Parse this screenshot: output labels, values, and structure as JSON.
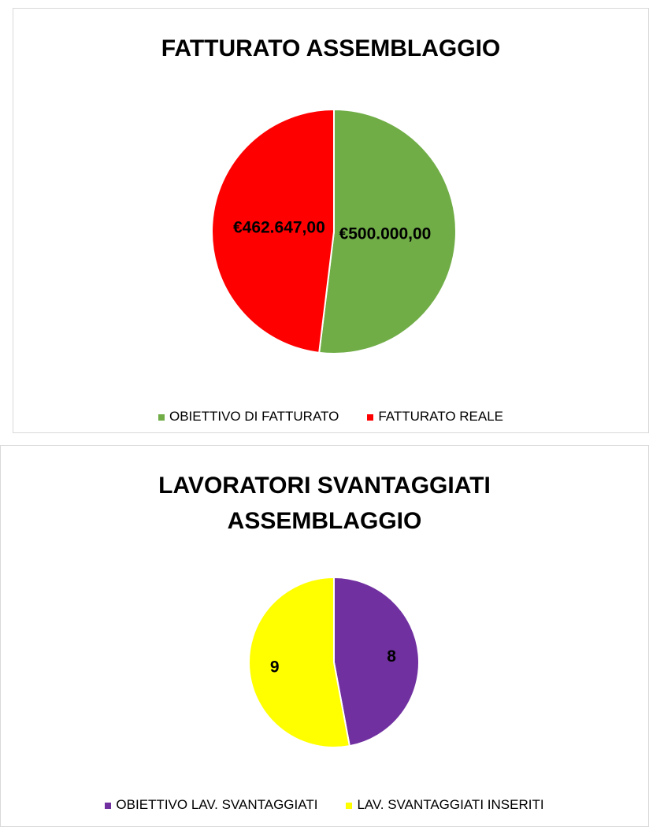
{
  "chart_data": [
    {
      "type": "pie",
      "title": "FATTURATO ASSEMBLAGGIO",
      "categories": [
        "OBIETTIVO DI FATTURATO",
        "FATTURATO REALE"
      ],
      "values": [
        500000,
        462647
      ],
      "value_labels": [
        "€500.000,00",
        "€462.647,00"
      ],
      "colors": [
        "#70ad47",
        "#ff0000"
      ],
      "legend": "bottom"
    },
    {
      "type": "pie",
      "title": "LAVORATORI SVANTAGGIATI ASSEMBLAGGIO",
      "categories": [
        "OBIETTIVO LAV. SVANTAGGIATI",
        "LAV. SVANTAGGIATI INSERITI"
      ],
      "values": [
        8,
        9
      ],
      "colors": [
        "#7030a0",
        "#ffff00"
      ],
      "legend": "bottom"
    }
  ]
}
